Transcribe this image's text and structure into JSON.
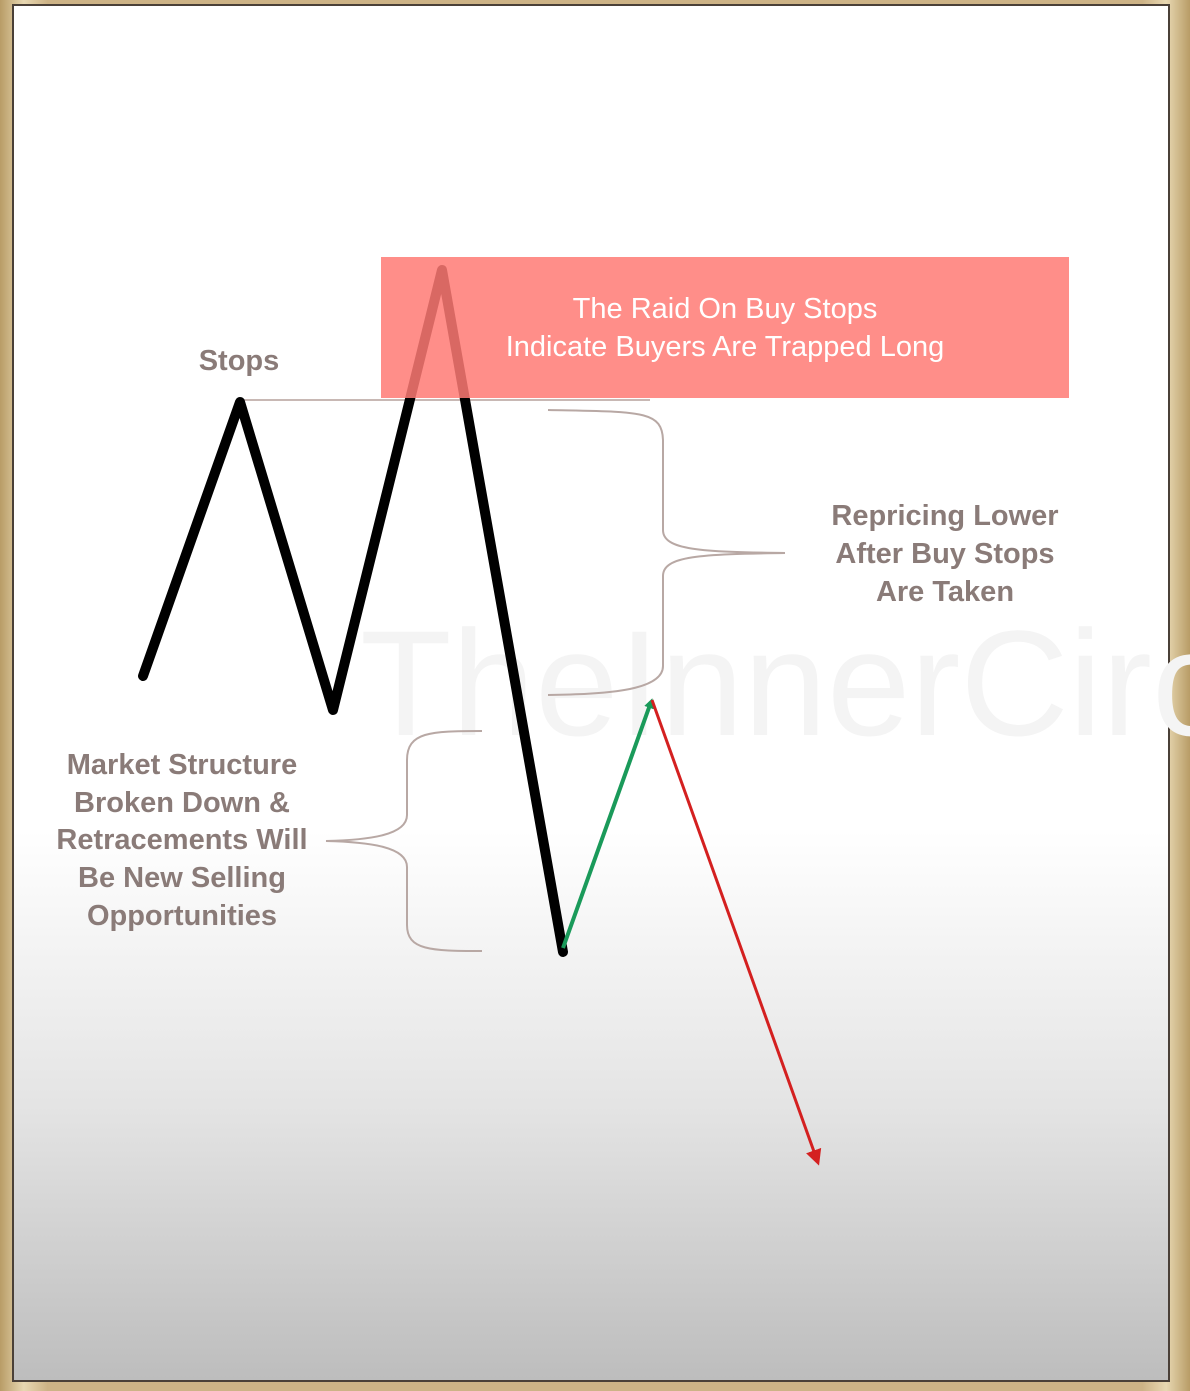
{
  "diagram": {
    "stops_label": "Stops",
    "raid_box": {
      "line1": "The Raid On Buy Stops",
      "line2": "Indicate Buyers Are Trapped Long",
      "color": "#ff8a84"
    },
    "repricing_label": [
      "Repricing Lower",
      "After Buy Stops",
      "Are Taken"
    ],
    "market_structure_label": [
      "Market Structure",
      "Broken Down &",
      "Retracements Will",
      "Be New Selling",
      "Opportunities"
    ],
    "watermark": "TheInnerCircle",
    "colors": {
      "price_line": "#000000",
      "retracement_arrow": "#1a9a5a",
      "decline_arrow": "#d42020",
      "annotation_text": "#8a7b78",
      "bracket": "#b8a8a4"
    }
  }
}
